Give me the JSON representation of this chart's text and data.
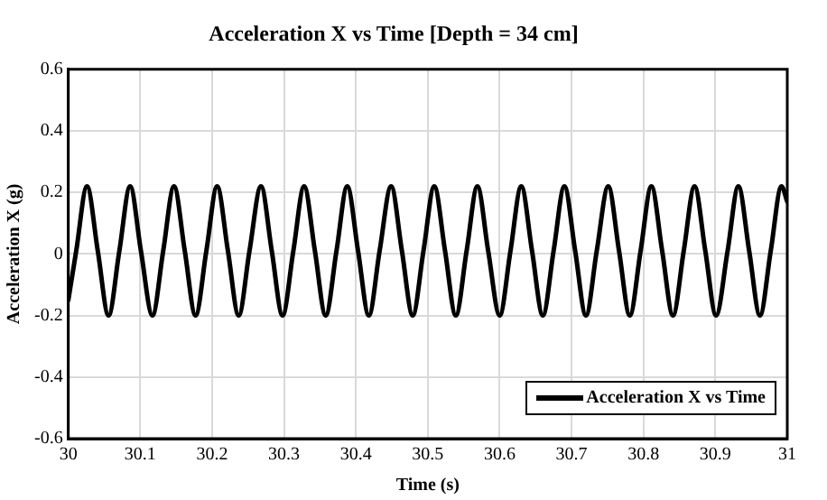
{
  "chart_data": {
    "type": "line",
    "title": "Acceleration X vs Time [Depth = 34 cm]",
    "xlabel": "Time (s)",
    "ylabel": "Acceleration X (g)",
    "xlim": [
      30,
      31
    ],
    "xticks": [
      30,
      30.1,
      30.2,
      30.3,
      30.4,
      30.5,
      30.6,
      30.7,
      30.8,
      30.9,
      31
    ],
    "ylim": [
      -0.6,
      0.6
    ],
    "yticks": [
      -0.6,
      -0.4,
      -0.2,
      0,
      0.2,
      0.4,
      0.6
    ],
    "grid": true,
    "legend": "bottom right",
    "marker": "none",
    "line_style": "solid",
    "series": [
      {
        "name": "Acceleration X vs Time",
        "color": "#000000",
        "x": [
          30,
          30.011,
          30.026,
          30.041,
          30.056,
          30.071,
          30.086,
          30.101,
          30.117,
          30.132,
          30.147,
          30.162,
          30.177,
          30.192,
          30.207,
          30.222,
          30.237,
          30.252,
          30.268,
          30.283,
          30.298,
          30.313,
          30.328,
          30.343,
          30.358,
          30.373,
          30.388,
          30.403,
          30.418,
          30.433,
          30.449,
          30.464,
          30.479,
          30.494,
          30.509,
          30.524,
          30.539,
          30.554,
          30.569,
          30.584,
          30.6,
          30.615,
          30.63,
          30.645,
          30.66,
          30.675,
          30.69,
          30.705,
          30.72,
          30.735,
          30.751,
          30.766,
          30.781,
          30.796,
          30.811,
          30.826,
          30.841,
          30.856,
          30.871,
          30.886,
          30.901,
          30.917,
          30.932,
          30.947,
          30.962,
          30.977,
          30.992,
          31
        ],
        "values": [
          -0.15,
          0.01,
          0.22,
          0.01,
          -0.2,
          0.01,
          0.22,
          0.01,
          -0.2,
          0.01,
          0.22,
          0.01,
          -0.2,
          0.01,
          0.22,
          0.01,
          -0.2,
          0.01,
          0.22,
          0.01,
          -0.2,
          0.01,
          0.22,
          0.01,
          -0.2,
          0.01,
          0.22,
          0.01,
          -0.2,
          0.01,
          0.22,
          0.01,
          -0.2,
          0.01,
          0.22,
          0.01,
          -0.2,
          0.01,
          0.22,
          0.01,
          -0.2,
          0.01,
          0.22,
          0.01,
          -0.2,
          0.01,
          0.22,
          0.01,
          -0.2,
          0.01,
          0.22,
          0.01,
          -0.2,
          0.01,
          0.22,
          0.01,
          -0.2,
          0.01,
          0.22,
          0.01,
          -0.2,
          0.01,
          0.22,
          0.01,
          -0.2,
          0.01,
          0.22,
          0.17
        ]
      }
    ]
  }
}
